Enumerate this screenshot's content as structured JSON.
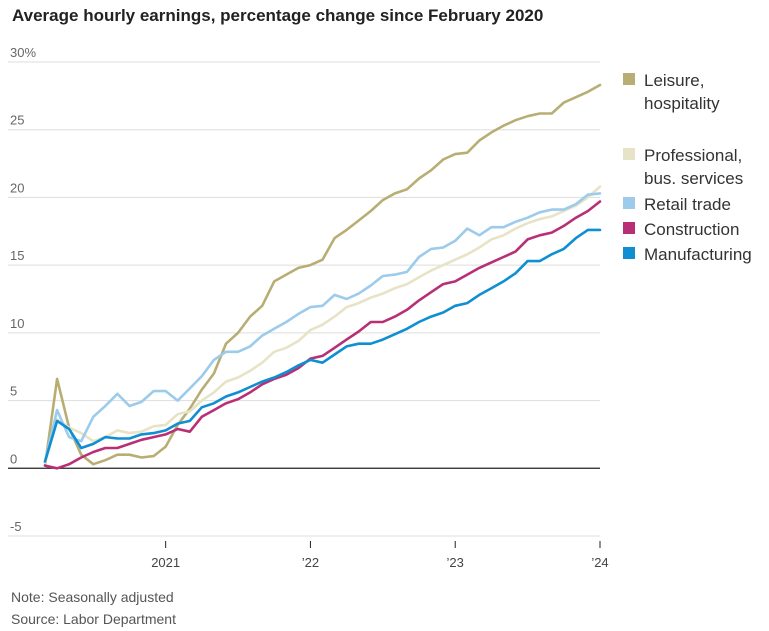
{
  "chart_data": {
    "type": "line",
    "title": "Average hourly earnings, percentage change since February 2020",
    "note": "Note: Seasonally adjusted",
    "source": "Source: Labor Department",
    "y_unit_suffix": "%",
    "ylim": [
      -5,
      30
    ],
    "yticks": [
      -5,
      0,
      5,
      10,
      15,
      20,
      25,
      30
    ],
    "xlim": [
      "2020-03",
      "2024-01"
    ],
    "xticks": [
      {
        "date": "2021-01",
        "label": "2021"
      },
      {
        "date": "2022-01",
        "label": "’22"
      },
      {
        "date": "2023-01",
        "label": "’23"
      },
      {
        "date": "2024-01",
        "label": "’24"
      }
    ],
    "grid": true,
    "legend_position": "right",
    "x": [
      "2020-03",
      "2020-04",
      "2020-05",
      "2020-06",
      "2020-07",
      "2020-08",
      "2020-09",
      "2020-10",
      "2020-11",
      "2020-12",
      "2021-01",
      "2021-02",
      "2021-03",
      "2021-04",
      "2021-05",
      "2021-06",
      "2021-07",
      "2021-08",
      "2021-09",
      "2021-10",
      "2021-11",
      "2021-12",
      "2022-01",
      "2022-02",
      "2022-03",
      "2022-04",
      "2022-05",
      "2022-06",
      "2022-07",
      "2022-08",
      "2022-09",
      "2022-10",
      "2022-11",
      "2022-12",
      "2023-01",
      "2023-02",
      "2023-03",
      "2023-04",
      "2023-05",
      "2023-06",
      "2023-07",
      "2023-08",
      "2023-09",
      "2023-10",
      "2023-11",
      "2023-12",
      "2024-01"
    ],
    "series": [
      {
        "name": "Leisure,\nhospitality",
        "color": "#b8ae74",
        "values": [
          0.2,
          6.6,
          3.0,
          1.0,
          0.3,
          0.6,
          1.0,
          1.0,
          0.8,
          0.9,
          1.6,
          3.2,
          4.4,
          5.8,
          7.0,
          9.2,
          10.0,
          11.2,
          12.0,
          13.8,
          14.3,
          14.8,
          15.0,
          15.4,
          17.0,
          17.6,
          18.3,
          19.0,
          19.8,
          20.3,
          20.6,
          21.4,
          22.0,
          22.8,
          23.2,
          23.3,
          24.2,
          24.8,
          25.3,
          25.7,
          26.0,
          26.2,
          26.2,
          27.0,
          27.4,
          27.8,
          28.3
        ]
      },
      {
        "name": "Professional,\nbus. services",
        "color": "#e7e3c6",
        "values": [
          0.4,
          3.6,
          3.0,
          2.6,
          2.0,
          2.3,
          2.8,
          2.6,
          2.7,
          3.1,
          3.2,
          4.0,
          4.2,
          5.0,
          5.6,
          6.4,
          6.7,
          7.2,
          7.8,
          8.6,
          8.9,
          9.4,
          10.2,
          10.6,
          11.2,
          11.9,
          12.2,
          12.6,
          12.9,
          13.3,
          13.6,
          14.1,
          14.6,
          15.0,
          15.4,
          15.8,
          16.3,
          16.9,
          17.2,
          17.7,
          18.1,
          18.4,
          18.6,
          19.0,
          19.4,
          20.0,
          20.8
        ]
      },
      {
        "name": "Retail trade",
        "color": "#9ccbeb",
        "values": [
          0.5,
          4.3,
          2.3,
          2.0,
          3.8,
          4.6,
          5.5,
          4.6,
          4.9,
          5.7,
          5.7,
          5.0,
          5.9,
          6.8,
          8.0,
          8.6,
          8.6,
          9.0,
          9.8,
          10.3,
          10.8,
          11.4,
          11.9,
          12.0,
          12.8,
          12.5,
          12.9,
          13.5,
          14.2,
          14.3,
          14.5,
          15.6,
          16.2,
          16.3,
          16.8,
          17.7,
          17.2,
          17.8,
          17.8,
          18.2,
          18.5,
          18.9,
          19.1,
          19.1,
          19.5,
          20.2,
          20.3
        ]
      },
      {
        "name": "Construction",
        "color": "#b82f76",
        "values": [
          0.2,
          0.0,
          0.3,
          0.8,
          1.2,
          1.5,
          1.5,
          1.8,
          2.1,
          2.3,
          2.5,
          2.9,
          2.7,
          3.8,
          4.3,
          4.8,
          5.1,
          5.6,
          6.2,
          6.6,
          6.9,
          7.4,
          8.1,
          8.3,
          8.9,
          9.5,
          10.1,
          10.8,
          10.8,
          11.2,
          11.7,
          12.4,
          13.0,
          13.6,
          13.8,
          14.3,
          14.8,
          15.2,
          15.6,
          16.0,
          16.9,
          17.2,
          17.4,
          17.9,
          18.5,
          19.0,
          19.7
        ]
      },
      {
        "name": "Manufacturing",
        "color": "#0f8fd1",
        "values": [
          0.5,
          3.5,
          2.9,
          1.5,
          1.8,
          2.3,
          2.2,
          2.2,
          2.5,
          2.6,
          2.8,
          3.3,
          3.5,
          4.5,
          4.8,
          5.3,
          5.6,
          6.0,
          6.4,
          6.7,
          7.1,
          7.6,
          8.0,
          7.8,
          8.4,
          9.0,
          9.2,
          9.2,
          9.5,
          9.9,
          10.3,
          10.8,
          11.2,
          11.5,
          12.0,
          12.2,
          12.8,
          13.3,
          13.8,
          14.4,
          15.3,
          15.3,
          15.8,
          16.2,
          17.0,
          17.6,
          17.6
        ]
      }
    ]
  }
}
